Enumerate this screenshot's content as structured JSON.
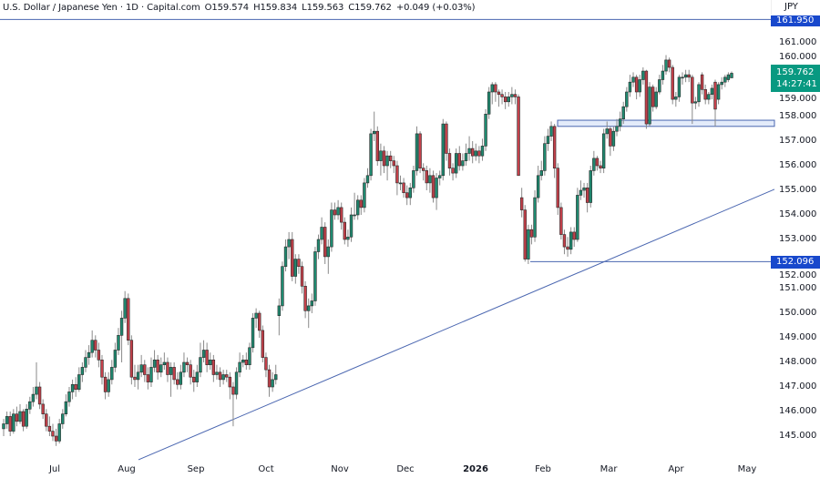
{
  "header": {
    "symbol": "U.S. Dollar / Japanese Yen · 1D · Capital.com",
    "open": "O159.574",
    "high": "H159.834",
    "low": "L159.563",
    "close": "C159.762",
    "change": "+0.049 (+0.03%)"
  },
  "currency": "JPY",
  "price_tags": {
    "current_price": "159.762",
    "countdown": "14:27:41",
    "support_level": "152.096",
    "top_level": "161.950"
  },
  "colors": {
    "up": "#1f8a70",
    "down": "#c4404a",
    "drawing": "#4a66b0",
    "current_tag": "#089981",
    "level_tag": "#1848cc"
  },
  "chart_data": {
    "type": "candlestick",
    "title": "U.S. Dollar / Japanese Yen · 1D · Capital.com",
    "x_tick_labels": [
      "Jul",
      "Aug",
      "Sep",
      "Oct",
      "Nov",
      "Dec",
      "2026",
      "Feb",
      "Mar",
      "Apr",
      "May"
    ],
    "y_ticks": [
      145,
      146,
      147,
      148,
      149,
      150,
      151,
      152,
      153,
      154,
      155,
      156,
      157,
      158,
      159,
      160,
      161
    ],
    "y_tick_labels": [
      "145.000",
      "146.000",
      "147.000",
      "148.000",
      "149.000",
      "150.000",
      "151.000",
      "152.000",
      "153.000",
      "154.000",
      "155.000",
      "156.000",
      "157.000",
      "158.000",
      "159.000",
      "160.000",
      "161.000"
    ],
    "ylim": [
      144.0,
      162.6
    ],
    "grid": false,
    "horizontal_levels": [
      152.096,
      161.95
    ],
    "zone": [
      157.6,
      157.85
    ],
    "trendline": [
      144.04,
      155.04
    ],
    "candles_ohlc": [
      [
        145.3,
        145.7,
        145.0,
        145.5
      ],
      [
        145.5,
        146.0,
        145.3,
        145.8
      ],
      [
        145.8,
        146.0,
        145.0,
        145.2
      ],
      [
        145.2,
        146.1,
        145.1,
        145.9
      ],
      [
        145.9,
        146.2,
        145.4,
        145.6
      ],
      [
        145.6,
        146.3,
        145.5,
        146.0
      ],
      [
        146.0,
        146.1,
        145.2,
        145.4
      ],
      [
        145.4,
        146.3,
        145.3,
        146.1
      ],
      [
        146.1,
        146.6,
        145.9,
        146.4
      ],
      [
        146.4,
        147.0,
        146.2,
        146.7
      ],
      [
        146.7,
        148.0,
        146.5,
        147.0
      ],
      [
        147.0,
        147.2,
        146.1,
        146.3
      ],
      [
        146.3,
        146.5,
        145.7,
        145.9
      ],
      [
        145.9,
        146.1,
        145.2,
        145.4
      ],
      [
        145.4,
        145.8,
        145.0,
        145.2
      ],
      [
        145.2,
        145.5,
        144.8,
        145.0
      ],
      [
        145.0,
        145.3,
        144.6,
        144.8
      ],
      [
        144.8,
        145.7,
        144.7,
        145.5
      ],
      [
        145.5,
        146.1,
        145.3,
        145.9
      ],
      [
        145.9,
        146.7,
        145.8,
        146.4
      ],
      [
        146.4,
        147.0,
        146.2,
        146.8
      ],
      [
        146.8,
        147.3,
        146.5,
        147.1
      ],
      [
        147.1,
        147.4,
        146.6,
        146.9
      ],
      [
        146.9,
        147.8,
        146.8,
        147.5
      ],
      [
        147.5,
        148.0,
        147.2,
        147.8
      ],
      [
        147.8,
        148.5,
        147.6,
        148.2
      ],
      [
        148.2,
        148.7,
        147.9,
        148.4
      ],
      [
        148.4,
        149.3,
        148.2,
        148.9
      ],
      [
        148.9,
        149.1,
        148.2,
        148.5
      ],
      [
        148.5,
        148.8,
        147.8,
        148.1
      ],
      [
        148.1,
        148.3,
        147.1,
        147.4
      ],
      [
        147.4,
        147.6,
        146.5,
        146.8
      ],
      [
        146.8,
        147.6,
        146.6,
        147.3
      ],
      [
        147.3,
        148.1,
        147.1,
        147.8
      ],
      [
        147.8,
        148.8,
        147.6,
        148.5
      ],
      [
        148.5,
        149.4,
        148.3,
        149.1
      ],
      [
        149.1,
        150.1,
        148.0,
        149.8
      ],
      [
        149.8,
        150.9,
        149.6,
        150.6
      ],
      [
        150.6,
        150.8,
        148.7,
        148.9
      ],
      [
        148.9,
        149.1,
        147.1,
        147.4
      ],
      [
        147.4,
        147.9,
        147.0,
        147.3
      ],
      [
        147.3,
        147.9,
        146.9,
        147.6
      ],
      [
        147.6,
        148.3,
        147.4,
        147.9
      ],
      [
        147.9,
        148.1,
        147.2,
        147.5
      ],
      [
        147.5,
        147.8,
        146.9,
        147.2
      ],
      [
        147.2,
        148.2,
        147.0,
        147.8
      ],
      [
        147.8,
        148.5,
        147.6,
        148.1
      ],
      [
        148.1,
        148.3,
        147.3,
        147.6
      ],
      [
        147.6,
        148.2,
        147.4,
        147.9
      ],
      [
        147.9,
        148.4,
        147.7,
        148.0
      ],
      [
        148.0,
        148.2,
        147.2,
        147.5
      ],
      [
        147.5,
        148.0,
        146.6,
        147.8
      ],
      [
        147.8,
        148.0,
        147.1,
        147.3
      ],
      [
        147.3,
        147.6,
        146.9,
        147.1
      ],
      [
        147.1,
        147.9,
        146.9,
        147.6
      ],
      [
        147.6,
        148.4,
        147.4,
        148.0
      ],
      [
        148.0,
        148.2,
        147.6,
        147.9
      ],
      [
        147.9,
        148.1,
        147.1,
        147.4
      ],
      [
        147.4,
        147.7,
        146.8,
        147.2
      ],
      [
        147.2,
        147.9,
        147.0,
        147.6
      ],
      [
        147.6,
        148.8,
        147.4,
        148.2
      ],
      [
        148.2,
        148.9,
        148.0,
        148.5
      ],
      [
        148.5,
        148.8,
        147.6,
        147.9
      ],
      [
        147.9,
        148.4,
        147.7,
        148.1
      ],
      [
        148.1,
        148.3,
        147.2,
        147.5
      ],
      [
        147.5,
        147.9,
        147.3,
        147.6
      ],
      [
        147.6,
        147.8,
        147.0,
        147.3
      ],
      [
        147.3,
        147.7,
        147.1,
        147.5
      ],
      [
        147.5,
        147.7,
        147.2,
        147.4
      ],
      [
        147.4,
        147.6,
        146.5,
        147.0
      ],
      [
        147.0,
        147.2,
        145.4,
        146.7
      ],
      [
        146.7,
        147.8,
        146.5,
        147.6
      ],
      [
        147.6,
        148.4,
        147.4,
        148.0
      ],
      [
        148.0,
        148.3,
        147.8,
        148.1
      ],
      [
        148.1,
        148.4,
        147.7,
        147.9
      ],
      [
        147.9,
        148.8,
        147.7,
        148.6
      ],
      [
        148.6,
        150.0,
        148.4,
        149.8
      ],
      [
        149.8,
        150.2,
        149.4,
        150.0
      ],
      [
        150.0,
        150.1,
        149.0,
        149.3
      ],
      [
        149.3,
        149.5,
        148.0,
        148.2
      ],
      [
        148.2,
        148.4,
        147.4,
        147.7
      ],
      [
        147.7,
        147.9,
        146.6,
        147.0
      ],
      [
        147.0,
        147.6,
        146.8,
        147.3
      ],
      [
        147.3,
        147.9,
        147.1,
        147.5
      ],
      [
        149.9,
        150.6,
        149.1,
        150.3
      ],
      [
        150.3,
        152.1,
        150.1,
        151.9
      ],
      [
        151.9,
        153.0,
        151.7,
        152.7
      ],
      [
        152.7,
        153.3,
        152.2,
        153.0
      ],
      [
        153.0,
        153.3,
        151.3,
        151.5
      ],
      [
        151.5,
        152.4,
        151.2,
        152.2
      ],
      [
        152.2,
        152.4,
        151.6,
        151.9
      ],
      [
        151.9,
        152.1,
        150.8,
        151.1
      ],
      [
        151.1,
        151.3,
        149.8,
        150.1
      ],
      [
        150.1,
        150.6,
        149.4,
        150.3
      ],
      [
        150.3,
        150.8,
        150.0,
        150.5
      ],
      [
        150.5,
        152.7,
        150.3,
        152.5
      ],
      [
        152.5,
        153.2,
        152.2,
        153.0
      ],
      [
        153.0,
        153.9,
        152.8,
        153.5
      ],
      [
        153.5,
        153.7,
        152.0,
        152.3
      ],
      [
        152.3,
        153.0,
        151.6,
        152.7
      ],
      [
        152.7,
        154.5,
        152.5,
        154.2
      ],
      [
        154.2,
        154.5,
        153.8,
        154.0
      ],
      [
        154.0,
        154.6,
        153.8,
        154.3
      ],
      [
        154.3,
        154.5,
        153.4,
        153.7
      ],
      [
        153.7,
        153.9,
        152.8,
        153.0
      ],
      [
        153.0,
        153.4,
        152.7,
        153.1
      ],
      [
        153.1,
        154.3,
        152.9,
        154.0
      ],
      [
        154.0,
        154.9,
        153.8,
        154.0
      ],
      [
        154.0,
        154.8,
        153.8,
        154.6
      ],
      [
        154.6,
        154.8,
        154.0,
        154.3
      ],
      [
        154.3,
        155.5,
        154.1,
        155.3
      ],
      [
        155.3,
        155.9,
        155.1,
        155.6
      ],
      [
        155.6,
        157.5,
        155.4,
        157.3
      ],
      [
        157.3,
        158.2,
        157.0,
        157.4
      ],
      [
        157.4,
        157.6,
        156.0,
        156.2
      ],
      [
        156.2,
        156.9,
        155.6,
        156.6
      ],
      [
        156.6,
        156.8,
        155.7,
        156.0
      ],
      [
        156.0,
        156.6,
        155.4,
        156.4
      ],
      [
        156.4,
        156.6,
        155.9,
        156.2
      ],
      [
        156.2,
        156.4,
        155.7,
        156.0
      ],
      [
        156.0,
        156.2,
        154.8,
        155.3
      ],
      [
        155.3,
        155.6,
        155.0,
        155.3
      ],
      [
        155.3,
        155.5,
        154.7,
        154.9
      ],
      [
        154.9,
        155.2,
        154.4,
        154.7
      ],
      [
        154.7,
        155.3,
        154.4,
        155.1
      ],
      [
        155.1,
        156.0,
        154.9,
        155.8
      ],
      [
        155.8,
        157.6,
        155.6,
        157.3
      ],
      [
        157.3,
        157.4,
        155.7,
        155.9
      ],
      [
        155.9,
        156.1,
        155.4,
        155.8
      ],
      [
        155.8,
        156.0,
        155.0,
        155.3
      ],
      [
        155.3,
        155.9,
        154.9,
        155.6
      ],
      [
        155.6,
        155.8,
        154.5,
        154.7
      ],
      [
        154.7,
        155.7,
        154.2,
        155.5
      ],
      [
        155.5,
        155.8,
        155.2,
        155.6
      ],
      [
        155.6,
        157.9,
        155.4,
        157.7
      ],
      [
        157.7,
        157.8,
        156.2,
        156.5
      ],
      [
        156.5,
        156.7,
        155.6,
        155.9
      ],
      [
        155.9,
        156.1,
        155.4,
        155.7
      ],
      [
        155.7,
        156.7,
        155.5,
        156.5
      ],
      [
        156.5,
        156.8,
        155.8,
        156.0
      ],
      [
        156.0,
        156.5,
        155.8,
        156.2
      ],
      [
        156.2,
        156.9,
        156.0,
        156.5
      ],
      [
        156.5,
        157.2,
        156.2,
        156.7
      ],
      [
        156.7,
        157.0,
        156.1,
        156.4
      ],
      [
        156.4,
        156.9,
        156.2,
        156.6
      ],
      [
        156.6,
        156.8,
        156.1,
        156.4
      ],
      [
        156.4,
        157.1,
        156.2,
        156.8
      ],
      [
        156.8,
        158.3,
        156.6,
        158.1
      ],
      [
        158.1,
        159.2,
        157.9,
        159.0
      ],
      [
        159.0,
        159.4,
        158.5,
        159.3
      ],
      [
        159.3,
        159.4,
        158.6,
        159.0
      ],
      [
        159.0,
        159.1,
        158.4,
        158.9
      ],
      [
        158.9,
        159.1,
        158.5,
        158.8
      ],
      [
        158.8,
        159.0,
        158.3,
        158.6
      ],
      [
        158.6,
        159.0,
        158.4,
        158.8
      ],
      [
        158.8,
        159.2,
        158.5,
        158.9
      ],
      [
        158.9,
        159.1,
        158.5,
        158.8
      ],
      [
        158.8,
        158.9,
        155.6,
        155.6
      ],
      [
        154.7,
        155.1,
        153.9,
        154.2
      ],
      [
        154.2,
        154.4,
        152.1,
        152.2
      ],
      [
        152.2,
        153.6,
        152.0,
        153.4
      ],
      [
        153.4,
        153.6,
        152.8,
        153.1
      ],
      [
        153.1,
        155.0,
        152.9,
        154.7
      ],
      [
        154.7,
        156.0,
        154.5,
        155.6
      ],
      [
        155.6,
        156.2,
        155.4,
        155.8
      ],
      [
        155.8,
        157.2,
        155.6,
        156.9
      ],
      [
        156.9,
        157.5,
        156.6,
        157.2
      ],
      [
        157.2,
        157.8,
        157.0,
        157.6
      ],
      [
        157.6,
        157.7,
        155.5,
        155.9
      ],
      [
        155.9,
        156.1,
        154.0,
        154.3
      ],
      [
        154.3,
        154.5,
        153.0,
        153.2
      ],
      [
        153.2,
        153.4,
        152.4,
        152.7
      ],
      [
        152.7,
        153.1,
        152.3,
        152.6
      ],
      [
        152.6,
        153.5,
        152.4,
        153.3
      ],
      [
        153.3,
        153.5,
        152.7,
        153.0
      ],
      [
        153.0,
        155.1,
        152.9,
        154.8
      ],
      [
        154.8,
        155.4,
        154.6,
        155.0
      ],
      [
        155.0,
        155.3,
        154.7,
        155.1
      ],
      [
        155.1,
        155.3,
        154.1,
        154.5
      ],
      [
        154.5,
        156.0,
        154.3,
        155.8
      ],
      [
        155.8,
        156.6,
        155.6,
        156.3
      ],
      [
        156.3,
        156.4,
        155.8,
        156.0
      ],
      [
        156.0,
        156.2,
        155.7,
        155.9
      ],
      [
        155.9,
        157.5,
        155.7,
        157.3
      ],
      [
        157.3,
        157.8,
        157.1,
        157.5
      ],
      [
        157.5,
        157.6,
        156.4,
        156.8
      ],
      [
        156.8,
        157.6,
        156.6,
        157.4
      ],
      [
        157.4,
        157.9,
        157.2,
        157.6
      ],
      [
        157.6,
        158.2,
        157.4,
        157.9
      ],
      [
        157.9,
        158.6,
        157.7,
        158.4
      ],
      [
        158.4,
        159.2,
        158.2,
        159.0
      ],
      [
        159.0,
        159.7,
        158.8,
        159.4
      ],
      [
        159.4,
        159.8,
        159.2,
        159.6
      ],
      [
        159.6,
        159.7,
        158.7,
        159.0
      ],
      [
        159.0,
        159.7,
        158.8,
        159.5
      ],
      [
        159.5,
        160.0,
        159.3,
        159.85
      ],
      [
        159.85,
        159.9,
        157.5,
        157.7
      ],
      [
        157.7,
        159.4,
        157.6,
        159.2
      ],
      [
        159.2,
        159.3,
        158.2,
        158.4
      ],
      [
        158.4,
        159.2,
        158.3,
        159.0
      ],
      [
        159.0,
        159.7,
        158.9,
        159.5
      ],
      [
        159.5,
        160.1,
        159.3,
        159.85
      ],
      [
        159.85,
        160.5,
        159.7,
        160.3
      ],
      [
        160.3,
        160.4,
        159.8,
        160.0
      ],
      [
        160.0,
        160.1,
        158.5,
        158.7
      ],
      [
        158.7,
        159.0,
        158.4,
        158.8
      ],
      [
        158.8,
        159.7,
        158.6,
        159.6
      ],
      [
        159.6,
        159.8,
        159.3,
        159.6
      ],
      [
        159.6,
        159.9,
        159.4,
        159.7
      ],
      [
        159.7,
        159.9,
        159.4,
        159.6
      ],
      [
        159.6,
        159.7,
        157.7,
        158.55
      ],
      [
        158.55,
        158.8,
        158.3,
        158.6
      ],
      [
        158.6,
        159.4,
        158.4,
        159.3
      ],
      [
        159.7,
        159.8,
        158.9,
        159.1
      ],
      [
        159.1,
        159.3,
        158.5,
        158.7
      ],
      [
        158.7,
        159.0,
        158.5,
        158.9
      ],
      [
        158.9,
        159.3,
        158.7,
        159.15
      ],
      [
        159.4,
        159.5,
        157.6,
        158.3
      ],
      [
        158.7,
        159.4,
        158.5,
        159.3
      ],
      [
        159.3,
        159.6,
        159.1,
        159.4
      ],
      [
        159.4,
        159.7,
        159.2,
        159.6
      ],
      [
        159.5,
        159.8,
        159.4,
        159.7
      ],
      [
        159.574,
        159.834,
        159.563,
        159.762
      ]
    ]
  }
}
